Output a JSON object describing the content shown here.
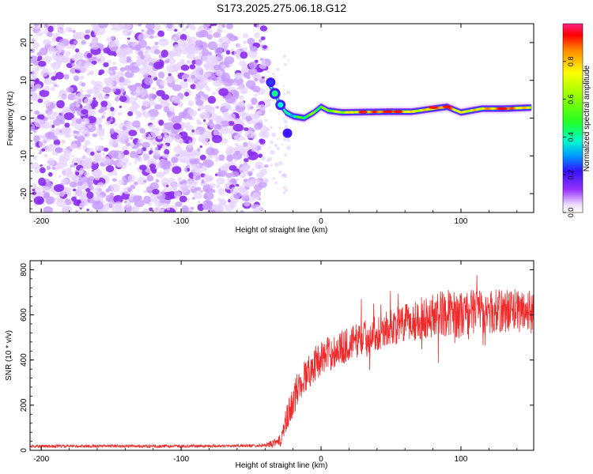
{
  "chart_data": [
    {
      "type": "heatmap",
      "title": "S173.2025.275.06.18.G12",
      "xlabel": "Height of straight line (km)",
      "ylabel": "Frequency (Hz)",
      "xlim": [
        -208,
        152
      ],
      "ylim": [
        -25,
        25
      ],
      "xticks": [
        -200,
        -100,
        0,
        100
      ],
      "xtick_labels": [
        "-200",
        "-100",
        "0",
        "100"
      ],
      "yticks": [
        -20,
        -10,
        0,
        10,
        20
      ],
      "ytick_labels": [
        "-20",
        "-10",
        "0",
        "10",
        "20"
      ],
      "noise_region_x": [
        -208,
        -40
      ],
      "noise_level": 0.15,
      "signal_track": {
        "description": "Bright narrow line of high normalized spectral amplitude",
        "points": [
          {
            "x": -37,
            "f": 9,
            "amp": 0.3
          },
          {
            "x": -33,
            "f": 6.5,
            "amp": 0.45
          },
          {
            "x": -29,
            "f": 3.5,
            "amp": 0.4
          },
          {
            "x": -25,
            "f": 1.5,
            "amp": 0.35
          },
          {
            "x": -20,
            "f": 0.5,
            "amp": 0.4
          },
          {
            "x": -12,
            "f": 0,
            "amp": 0.5
          },
          {
            "x": -5,
            "f": 1.5,
            "amp": 0.55
          },
          {
            "x": 0,
            "f": 3,
            "amp": 0.5
          },
          {
            "x": 5,
            "f": 2,
            "amp": 0.6
          },
          {
            "x": 15,
            "f": 1.5,
            "amp": 0.65
          },
          {
            "x": 30,
            "f": 1.6,
            "amp": 0.8
          },
          {
            "x": 50,
            "f": 1.7,
            "amp": 0.95
          },
          {
            "x": 65,
            "f": 1.7,
            "amp": 0.7
          },
          {
            "x": 80,
            "f": 2.5,
            "amp": 0.75
          },
          {
            "x": 90,
            "f": 3,
            "amp": 0.9
          },
          {
            "x": 100,
            "f": 1.5,
            "amp": 0.7
          },
          {
            "x": 115,
            "f": 2.5,
            "amp": 0.75
          },
          {
            "x": 130,
            "f": 2.5,
            "amp": 0.9
          },
          {
            "x": 150,
            "f": 2.8,
            "amp": 0.7
          }
        ]
      },
      "colorbar": {
        "label": "Normalized spectral amplitude",
        "range": [
          0,
          1
        ],
        "ticks": [
          0.0,
          0.2,
          0.4,
          0.6,
          0.8
        ],
        "tick_labels": [
          "0.0",
          "0.2",
          "0.4",
          "0.6",
          "0.8"
        ]
      }
    },
    {
      "type": "line",
      "xlabel": "Height of straight line (km)",
      "ylabel": "SNR (10 * v/v)",
      "xlim": [
        -208,
        152
      ],
      "ylim": [
        0,
        840
      ],
      "xticks": [
        -200,
        -100,
        0,
        100
      ],
      "xtick_labels": [
        "-200",
        "-100",
        "0",
        "100"
      ],
      "yticks": [
        0,
        200,
        400,
        600,
        800
      ],
      "ytick_labels": [
        "0",
        "200",
        "400",
        "600",
        "800"
      ],
      "series": [
        {
          "name": "SNR",
          "color": "#ee2a2a",
          "x": [
            -208,
            -180,
            -150,
            -120,
            -90,
            -60,
            -40,
            -30,
            -25,
            -20,
            -15,
            -10,
            -5,
            0,
            10,
            20,
            30,
            40,
            50,
            60,
            70,
            80,
            90,
            100,
            110,
            120,
            130,
            140,
            152
          ],
          "y": [
            18,
            18,
            19,
            18,
            19,
            20,
            22,
            35,
            120,
            220,
            300,
            340,
            380,
            410,
            440,
            470,
            500,
            520,
            545,
            560,
            580,
            600,
            610,
            600,
            620,
            610,
            620,
            620,
            615
          ],
          "noise_amplitude": [
            6,
            6,
            6,
            6,
            6,
            6,
            6,
            25,
            60,
            70,
            70,
            70,
            70,
            70,
            70,
            70,
            70,
            70,
            75,
            80,
            85,
            90,
            95,
            95,
            90,
            90,
            90,
            90,
            90
          ]
        }
      ]
    }
  ]
}
